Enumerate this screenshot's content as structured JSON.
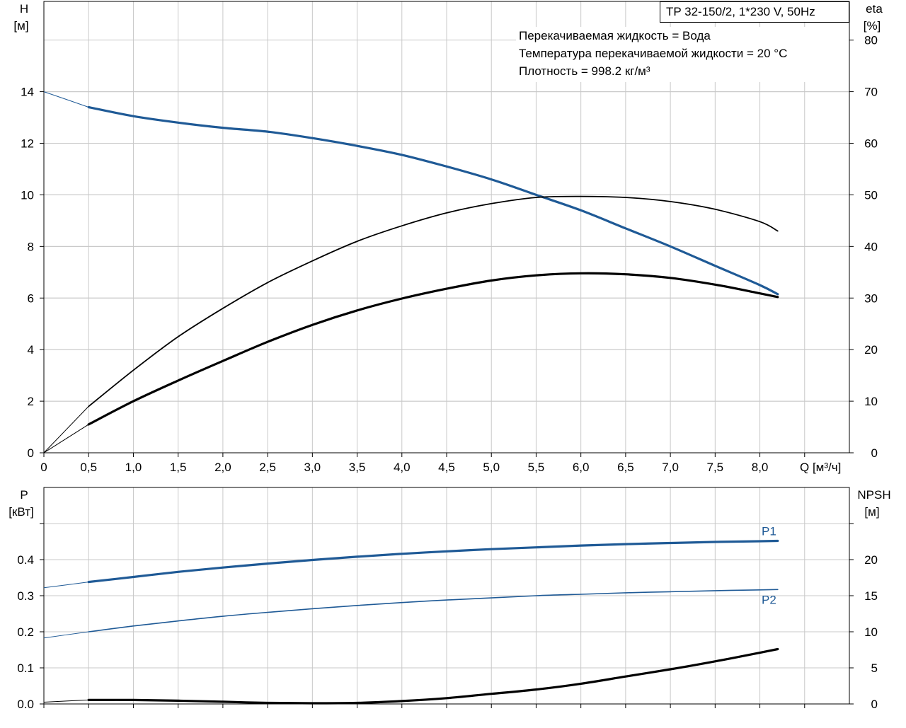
{
  "info": {
    "model": "TP 32-150/2, 1*230 V, 50Hz",
    "fluid_lines": [
      "Перекачиваемая жидкость = Вода",
      "Температура перекачиваемой жидкости = 20 °C",
      "Плотность = 998.2 кг/м³"
    ]
  },
  "colors": {
    "head": "#1f5a96",
    "eta": "#000000",
    "power": "#1f5a96",
    "npsh": "#000000",
    "grid": "#c8c8c8"
  },
  "chart_data": [
    {
      "type": "line",
      "panel": "head-efficiency",
      "xlabel": "Q [м³/ч]",
      "ylabel_left": [
        "H",
        "[м]"
      ],
      "ylabel_right": [
        "eta",
        "[%]"
      ],
      "xlim": [
        0,
        9
      ],
      "ylim_left": [
        0,
        17.5
      ],
      "ylim_right": [
        0,
        87.5
      ],
      "x_ticks": [
        0,
        0.5,
        1.0,
        1.5,
        2.0,
        2.5,
        3.0,
        3.5,
        4.0,
        4.5,
        5.0,
        5.5,
        6.0,
        6.5,
        7.0,
        7.5,
        8.0
      ],
      "x_tick_labels": [
        "0",
        "0,5",
        "1,0",
        "1,5",
        "2,0",
        "2,5",
        "3,0",
        "3,5",
        "4,0",
        "4,5",
        "5,0",
        "5,5",
        "6,0",
        "6,5",
        "7,0",
        "7,5",
        "8,0"
      ],
      "y_left_ticks": [
        0,
        2,
        4,
        6,
        8,
        10,
        12,
        14
      ],
      "y_left_tick_labels": [
        "0",
        "2",
        "4",
        "6",
        "8",
        "10",
        "12",
        "14"
      ],
      "y_right_ticks": [
        0,
        10,
        20,
        30,
        40,
        50,
        60,
        70,
        80
      ],
      "y_right_tick_labels": [
        "0",
        "10",
        "20",
        "30",
        "40",
        "50",
        "60",
        "70",
        "80"
      ],
      "grid": true,
      "series": [
        {
          "key": "head",
          "axis": "left",
          "style": "thick-blue",
          "x": [
            0,
            0.5,
            1.0,
            1.5,
            2.0,
            2.5,
            3.0,
            3.5,
            4.0,
            4.5,
            5.0,
            5.5,
            6.0,
            6.5,
            7.0,
            7.5,
            8.0,
            8.2
          ],
          "y": [
            14.0,
            13.4,
            13.05,
            12.8,
            12.6,
            12.45,
            12.2,
            11.9,
            11.55,
            11.1,
            10.6,
            10.0,
            9.4,
            8.7,
            8.0,
            7.25,
            6.5,
            6.15
          ],
          "extrapolate_to": 0.5
        },
        {
          "key": "eta-thin",
          "axis": "right",
          "style": "thin-black",
          "x": [
            0,
            0.5,
            1.0,
            1.5,
            2.0,
            2.5,
            3.0,
            3.5,
            4.0,
            4.5,
            5.0,
            5.5,
            6.0,
            6.5,
            7.0,
            7.5,
            8.0,
            8.2
          ],
          "y": [
            0,
            9.0,
            16.0,
            22.5,
            28.0,
            33.0,
            37.2,
            41.0,
            44.0,
            46.5,
            48.3,
            49.5,
            49.7,
            49.5,
            48.7,
            47.2,
            44.8,
            43.0
          ],
          "extrapolate_to": 0.5
        },
        {
          "key": "eta-thick",
          "axis": "right",
          "style": "thick-black",
          "x": [
            0,
            0.5,
            1.0,
            1.5,
            2.0,
            2.5,
            3.0,
            3.5,
            4.0,
            4.5,
            5.0,
            5.5,
            6.0,
            6.5,
            7.0,
            7.5,
            8.0,
            8.2
          ],
          "y": [
            0,
            5.5,
            10.0,
            14.0,
            17.8,
            21.5,
            24.8,
            27.6,
            29.9,
            31.8,
            33.4,
            34.4,
            34.8,
            34.6,
            33.9,
            32.6,
            30.9,
            30.2
          ],
          "extrapolate_to": 0.5
        }
      ]
    },
    {
      "type": "line",
      "panel": "power-npsh",
      "xlim": [
        0,
        9
      ],
      "ylim_left": [
        0,
        0.6
      ],
      "ylim_right": [
        0,
        30
      ],
      "ylabel_left": [
        "P",
        "[кВт]"
      ],
      "ylabel_right": [
        "NPSH",
        "[м]"
      ],
      "x_ticks": [
        0,
        0.5,
        1.0,
        1.5,
        2.0,
        2.5,
        3.0,
        3.5,
        4.0,
        4.5,
        5.0,
        5.5,
        6.0,
        6.5,
        7.0,
        7.5,
        8.0
      ],
      "y_left_ticks": [
        0,
        0.1,
        0.2,
        0.3,
        0.4,
        0.5
      ],
      "y_left_tick_labels": [
        "0.0",
        "0.1",
        "0.2",
        "0.3",
        "0.4",
        ""
      ],
      "y_right_ticks": [
        0,
        5,
        10,
        15,
        20,
        25
      ],
      "y_right_tick_labels": [
        "0",
        "5",
        "10",
        "15",
        "20",
        ""
      ],
      "grid": true,
      "series": [
        {
          "key": "P1",
          "name": "P1",
          "axis": "left",
          "style": "thick-blue",
          "x": [
            0,
            0.5,
            1.0,
            1.5,
            2.0,
            2.5,
            3.0,
            3.5,
            4.0,
            4.5,
            5.0,
            5.5,
            6.0,
            6.5,
            7.0,
            7.5,
            8.0,
            8.2
          ],
          "y": [
            0.322,
            0.338,
            0.352,
            0.366,
            0.378,
            0.389,
            0.399,
            0.408,
            0.416,
            0.423,
            0.429,
            0.434,
            0.439,
            0.443,
            0.446,
            0.449,
            0.451,
            0.452
          ],
          "extrapolate_to": 0.5
        },
        {
          "key": "P2",
          "name": "P2",
          "axis": "left",
          "style": "thin-blue",
          "x": [
            0,
            0.5,
            1.0,
            1.5,
            2.0,
            2.5,
            3.0,
            3.5,
            4.0,
            4.5,
            5.0,
            5.5,
            6.0,
            6.5,
            7.0,
            7.5,
            8.0,
            8.2
          ],
          "y": [
            0.183,
            0.2,
            0.216,
            0.23,
            0.243,
            0.254,
            0.264,
            0.273,
            0.281,
            0.288,
            0.294,
            0.3,
            0.304,
            0.308,
            0.311,
            0.314,
            0.316,
            0.317
          ],
          "extrapolate_to": 0.5
        },
        {
          "key": "NPSH",
          "axis": "right",
          "style": "thick-black",
          "x": [
            0,
            0.5,
            1.0,
            1.5,
            2.0,
            2.5,
            3.0,
            3.5,
            4.0,
            4.5,
            5.0,
            5.5,
            6.0,
            6.5,
            7.0,
            7.5,
            8.0,
            8.2
          ],
          "y": [
            0.25,
            0.55,
            0.55,
            0.45,
            0.3,
            0.15,
            0.1,
            0.15,
            0.4,
            0.8,
            1.4,
            2.0,
            2.8,
            3.8,
            4.8,
            5.9,
            7.1,
            7.6
          ],
          "extrapolate_to": 0.5
        }
      ]
    }
  ]
}
